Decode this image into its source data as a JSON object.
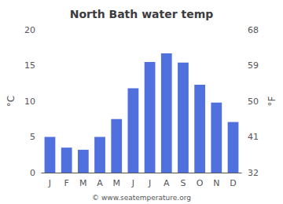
{
  "chart_data": {
    "type": "bar",
    "title": "North Bath water temp",
    "categories": [
      "J",
      "F",
      "M",
      "A",
      "M",
      "J",
      "J",
      "A",
      "S",
      "O",
      "N",
      "D"
    ],
    "values": [
      5.0,
      3.5,
      3.2,
      5.0,
      7.5,
      11.8,
      15.5,
      16.7,
      15.4,
      12.3,
      9.8,
      7.1
    ],
    "ylim": [
      0,
      20
    ],
    "yticks": [
      0,
      5,
      10,
      15,
      20
    ],
    "y2lim": [
      32,
      68
    ],
    "y2ticks": [
      32,
      41,
      50,
      59,
      68
    ],
    "ylabel": "°C",
    "y2label": "°F",
    "annotation": "© www.seatemperature.org",
    "grid": false
  }
}
